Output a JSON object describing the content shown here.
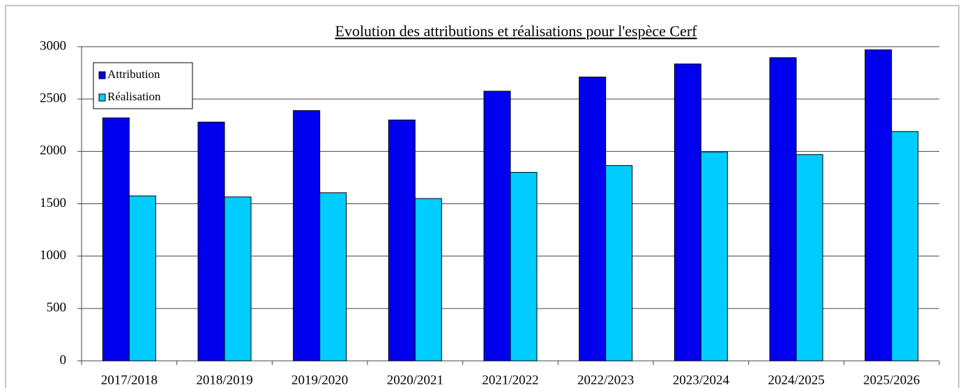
{
  "chart_data": {
    "type": "bar",
    "title": "Evolution des attributions et réalisations pour l'espèce Cerf",
    "categories": [
      "2017/2018",
      "2018/2019",
      "2019/2020",
      "2020/2021",
      "2021/2022",
      "2022/2023",
      "2023/2024",
      "2024/2025",
      "2025/2026"
    ],
    "series": [
      {
        "name": "Attribution",
        "color": "#0000ee",
        "values": [
          2320,
          2280,
          2390,
          2300,
          2575,
          2710,
          2835,
          2895,
          2970
        ]
      },
      {
        "name": "Réalisation",
        "color": "#00ccff",
        "values": [
          1575,
          1565,
          1605,
          1550,
          1800,
          1865,
          1995,
          1970,
          2190
        ]
      }
    ],
    "ylim": [
      0,
      3000
    ],
    "yticks": [
      0,
      500,
      1000,
      1500,
      2000,
      2500,
      3000
    ],
    "grid": true,
    "legend": "top-left"
  }
}
